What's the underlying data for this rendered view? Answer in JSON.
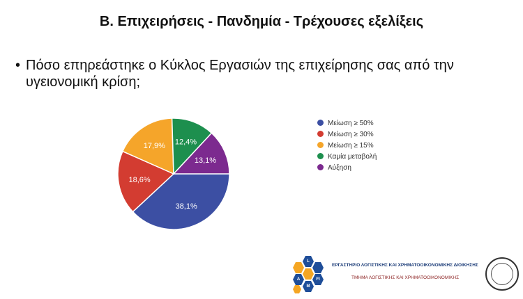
{
  "slide": {
    "title": "Β. Επιχειρήσεις - Πανδημία - Τρέχουσες εξελίξεις",
    "bullet": "•",
    "question": "Πόσο επηρεάστηκε ο Κύκλος Εργασιών της επιχείρησης σας από την υγειονομική κρίση;"
  },
  "chart_data": {
    "type": "pie",
    "title": "",
    "categories": [
      "Μείωση ≥ 50%",
      "Μείωση ≥ 30%",
      "Μείωση ≥ 15%",
      "Καμία μεταβολή",
      "Αύξηση"
    ],
    "values": [
      38.1,
      18.6,
      17.9,
      12.4,
      13.1
    ],
    "labels": [
      "38,1%",
      "18,6%",
      "17,9%",
      "12,4%",
      "13,1%"
    ],
    "colors": [
      "#3c4fa3",
      "#d33c31",
      "#f5a52a",
      "#1d8f4e",
      "#7c2a8f"
    ],
    "legend_position": "right"
  },
  "footer": {
    "lab_name": "ΕΡΓΑΣΤΗΡΙΟ ΛΟΓΙΣΤΙΚΗΣ ΚΑΙ ΧΡΗΜΑΤΟΟΙΚΟΝΟΜΙΚΗΣ ΔΙΟΙΚΗΣΗΣ",
    "department": "ΤΜΗΜΑ ΛΟΓΙΣΤΙΚΗΣ ΚΑΙ ΧΡΗΜΑΤΟΟΙΚΟΝΟΜΙΚΗΣ",
    "logo_letters": [
      "L",
      "A",
      "FI",
      "M"
    ]
  }
}
